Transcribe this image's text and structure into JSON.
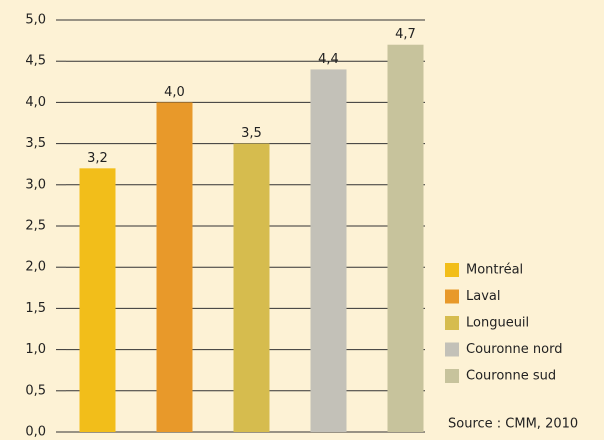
{
  "chart_data": {
    "type": "bar",
    "categories": [
      "Montréal",
      "Laval",
      "Longueuil",
      "Couronne nord",
      "Couronne sud"
    ],
    "values": [
      3.2,
      4.0,
      3.5,
      4.4,
      4.7
    ],
    "value_labels": [
      "3,2",
      "4,0",
      "3,5",
      "4,4",
      "4,7"
    ],
    "colors": [
      "#f2be1a",
      "#e8992a",
      "#d6bc4e",
      "#c3c1b8",
      "#c7c39c"
    ],
    "ylim": [
      0,
      5
    ],
    "yticks": [
      {
        "value": 0,
        "label": "0,0"
      },
      {
        "value": 0.5,
        "label": "0,5"
      },
      {
        "value": 1,
        "label": "1,0"
      },
      {
        "value": 1.5,
        "label": "1,5"
      },
      {
        "value": 2,
        "label": "2,0"
      },
      {
        "value": 2.5,
        "label": "2,5"
      },
      {
        "value": 3,
        "label": "3,0"
      },
      {
        "value": 3.5,
        "label": "3,5"
      },
      {
        "value": 4,
        "label": "4,0"
      },
      {
        "value": 4.5,
        "label": "4,5"
      },
      {
        "value": 5,
        "label": "5,0"
      }
    ],
    "grid": true,
    "legend": "right",
    "source": "Source : CMM, 2010"
  }
}
